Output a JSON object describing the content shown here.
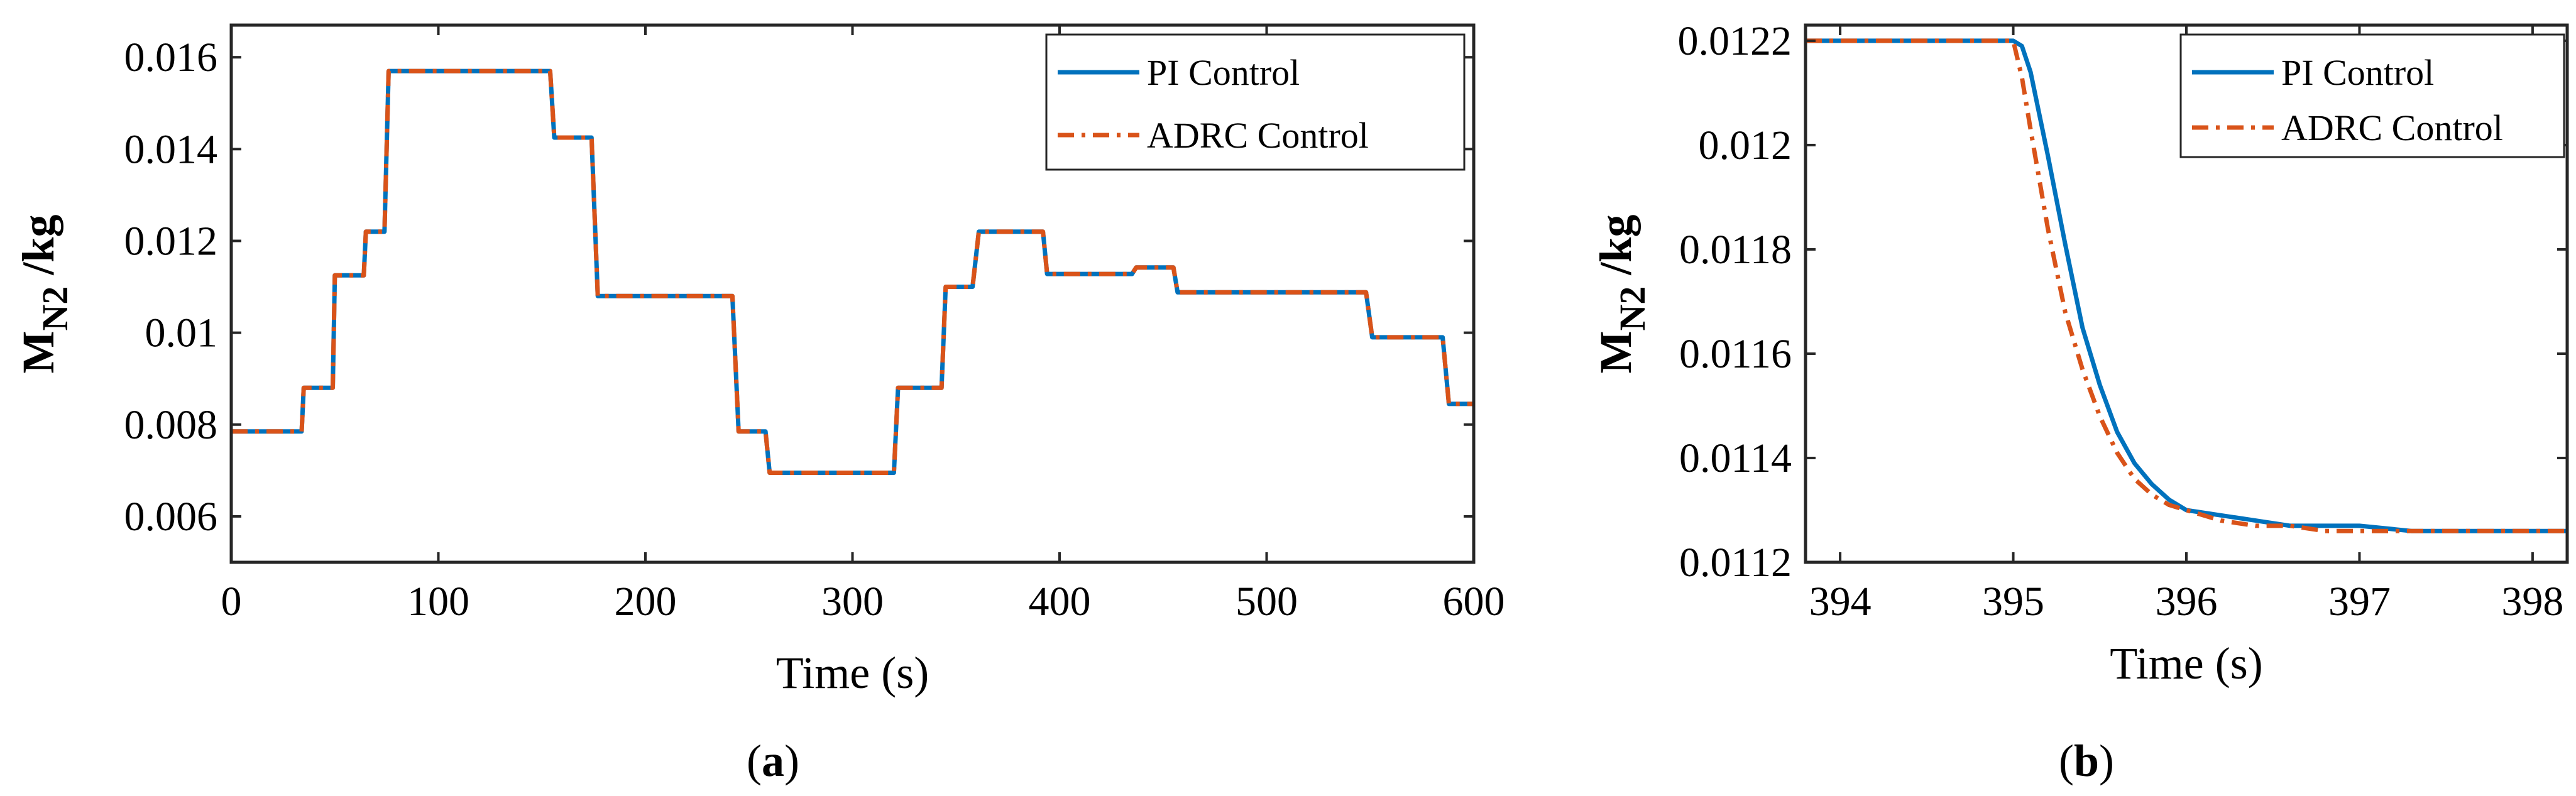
{
  "chart_data": [
    {
      "type": "line",
      "panel_label": "a",
      "xlabel": "Time (s)",
      "ylabel": {
        "base": "M",
        "sub": "N2",
        "unit": "/kg"
      },
      "xlim": [
        0,
        600
      ],
      "ylim": [
        0.005,
        0.0167
      ],
      "xticks": [
        0,
        100,
        200,
        300,
        400,
        500,
        600
      ],
      "xtick_labels": [
        "0",
        "100",
        "200",
        "300",
        "400",
        "500",
        "600"
      ],
      "yticks": [
        0.006,
        0.008,
        0.01,
        0.012,
        0.014,
        0.016
      ],
      "ytick_labels": [
        "0.006",
        "0.008",
        "0.01",
        "0.012",
        "0.014",
        "0.016"
      ],
      "legend": {
        "position": "top-right",
        "entries": [
          "PI Control",
          "ADRC Control"
        ]
      },
      "series": [
        {
          "name": "PI Control",
          "color": "#0072BD",
          "style": "solid",
          "x": [
            0,
            34,
            35,
            49,
            50,
            64,
            65,
            74,
            76,
            154,
            156,
            174,
            177,
            242,
            245,
            258,
            260,
            320,
            322,
            343,
            345,
            358,
            361,
            392,
            394,
            435,
            437,
            455,
            457,
            548,
            551,
            585,
            588,
            600
          ],
          "y": [
            0.00785,
            0.00785,
            0.0088,
            0.0088,
            0.01125,
            0.01125,
            0.0122,
            0.0122,
            0.0157,
            0.0157,
            0.01425,
            0.01425,
            0.0108,
            0.0108,
            0.00785,
            0.00785,
            0.00695,
            0.00695,
            0.0088,
            0.0088,
            0.011,
            0.011,
            0.0122,
            0.0122,
            0.01128,
            0.01128,
            0.01142,
            0.01142,
            0.01088,
            0.01088,
            0.0099,
            0.0099,
            0.00845,
            0.00845
          ]
        },
        {
          "name": "ADRC Control",
          "color": "#D95319",
          "style": "dashdot",
          "x": [
            0,
            34,
            35,
            49,
            50,
            64,
            65,
            74,
            76,
            154,
            156,
            174,
            177,
            242,
            245,
            258,
            260,
            320,
            322,
            343,
            345,
            358,
            361,
            392,
            394,
            435,
            437,
            455,
            457,
            548,
            551,
            585,
            588,
            600
          ],
          "y": [
            0.00785,
            0.00785,
            0.0088,
            0.0088,
            0.01125,
            0.01125,
            0.0122,
            0.0122,
            0.0157,
            0.0157,
            0.01425,
            0.01425,
            0.0108,
            0.0108,
            0.00785,
            0.00785,
            0.00695,
            0.00695,
            0.0088,
            0.0088,
            0.011,
            0.011,
            0.0122,
            0.0122,
            0.01128,
            0.01128,
            0.01142,
            0.01142,
            0.01088,
            0.01088,
            0.0099,
            0.0099,
            0.00845,
            0.00845
          ]
        }
      ]
    },
    {
      "type": "line",
      "panel_label": "b",
      "xlabel": "Time (s)",
      "ylabel": {
        "base": "M",
        "sub": "N2",
        "unit": "/kg"
      },
      "xlim": [
        393.8,
        398.2
      ],
      "ylim": [
        0.0112,
        0.01223
      ],
      "xticks": [
        394,
        395,
        396,
        397,
        398
      ],
      "xtick_labels": [
        "394",
        "395",
        "396",
        "397",
        "398"
      ],
      "yticks": [
        0.0112,
        0.0114,
        0.0116,
        0.0118,
        0.012,
        0.0122
      ],
      "ytick_labels": [
        "0.0112",
        "0.0114",
        "0.0116",
        "0.0118",
        "0.012",
        "0.0122"
      ],
      "legend": {
        "position": "top-right",
        "entries": [
          "PI Control",
          "ADRC Control"
        ]
      },
      "series": [
        {
          "name": "PI Control",
          "color": "#0072BD",
          "style": "solid",
          "x": [
            393.8,
            395.0,
            395.05,
            395.1,
            395.2,
            395.3,
            395.4,
            395.5,
            395.6,
            395.7,
            395.8,
            395.9,
            396.0,
            396.2,
            396.4,
            396.6,
            396.8,
            397.0,
            397.3,
            397.6,
            398.0,
            398.2
          ],
          "y": [
            0.0122,
            0.0122,
            0.01219,
            0.01214,
            0.01198,
            0.01181,
            0.01165,
            0.01154,
            0.01145,
            0.01139,
            0.01135,
            0.01132,
            0.0113,
            0.01129,
            0.01128,
            0.01127,
            0.01127,
            0.01127,
            0.01126,
            0.01126,
            0.01126,
            0.01126
          ]
        },
        {
          "name": "ADRC Control",
          "color": "#D95319",
          "style": "dashdot",
          "x": [
            393.8,
            395.0,
            395.05,
            395.1,
            395.2,
            395.3,
            395.4,
            395.5,
            395.6,
            395.7,
            395.8,
            395.9,
            396.0,
            396.2,
            396.4,
            396.6,
            396.8,
            397.0,
            397.3,
            397.6,
            398.0,
            398.2
          ],
          "y": [
            0.0122,
            0.0122,
            0.01213,
            0.01203,
            0.01184,
            0.01168,
            0.01157,
            0.01148,
            0.01141,
            0.01136,
            0.01133,
            0.01131,
            0.0113,
            0.01128,
            0.01127,
            0.01127,
            0.01126,
            0.01126,
            0.01126,
            0.01126,
            0.01126,
            0.01126
          ]
        }
      ]
    }
  ]
}
